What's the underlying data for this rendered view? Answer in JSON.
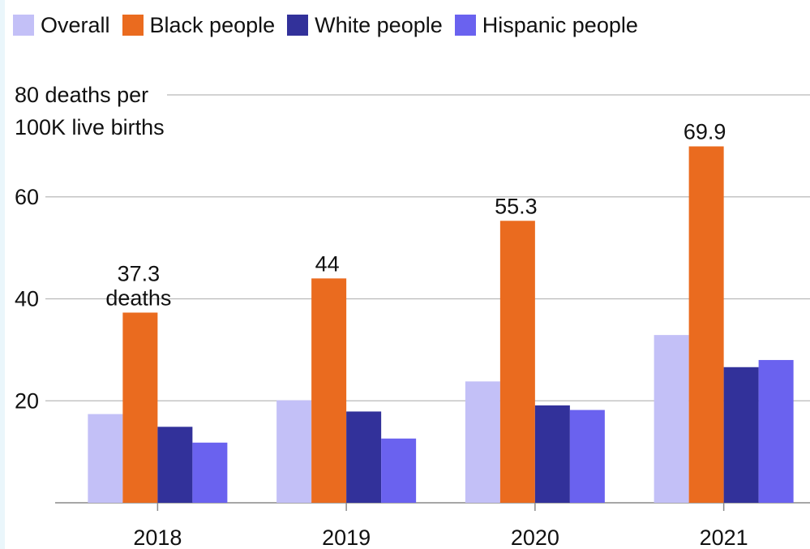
{
  "chart_data": {
    "type": "bar",
    "categories": [
      "2018",
      "2019",
      "2020",
      "2021"
    ],
    "series": [
      {
        "name": "Overall",
        "color": "#c3c0f7",
        "values": [
          17.4,
          20.1,
          23.8,
          32.9
        ]
      },
      {
        "name": "Black people",
        "color": "#ea6b1f",
        "values": [
          37.3,
          44.0,
          55.3,
          69.9
        ]
      },
      {
        "name": "White people",
        "color": "#32319a",
        "values": [
          14.9,
          17.9,
          19.1,
          26.6
        ]
      },
      {
        "name": "Hispanic people",
        "color": "#6a62ef",
        "values": [
          11.8,
          12.6,
          18.2,
          28.0
        ]
      }
    ],
    "y_axis": {
      "range": [
        0,
        80
      ],
      "ticks": [
        {
          "value": 20,
          "label": "20"
        },
        {
          "value": 40,
          "label": "40"
        },
        {
          "value": 60,
          "label": "60"
        },
        {
          "value": 80,
          "label": "80 deaths per"
        }
      ],
      "unit_line": "100K live births"
    },
    "grid": true,
    "legend_placement": "top-left",
    "data_labels": [
      {
        "series": "Black people",
        "category": "2018",
        "lines": [
          "37.3",
          "deaths"
        ]
      },
      {
        "series": "Black people",
        "category": "2019",
        "lines": [
          "44"
        ]
      },
      {
        "series": "Black people",
        "category": "2020",
        "lines": [
          "55.3"
        ]
      },
      {
        "series": "Black people",
        "category": "2021",
        "lines": [
          "69.9"
        ]
      }
    ]
  }
}
